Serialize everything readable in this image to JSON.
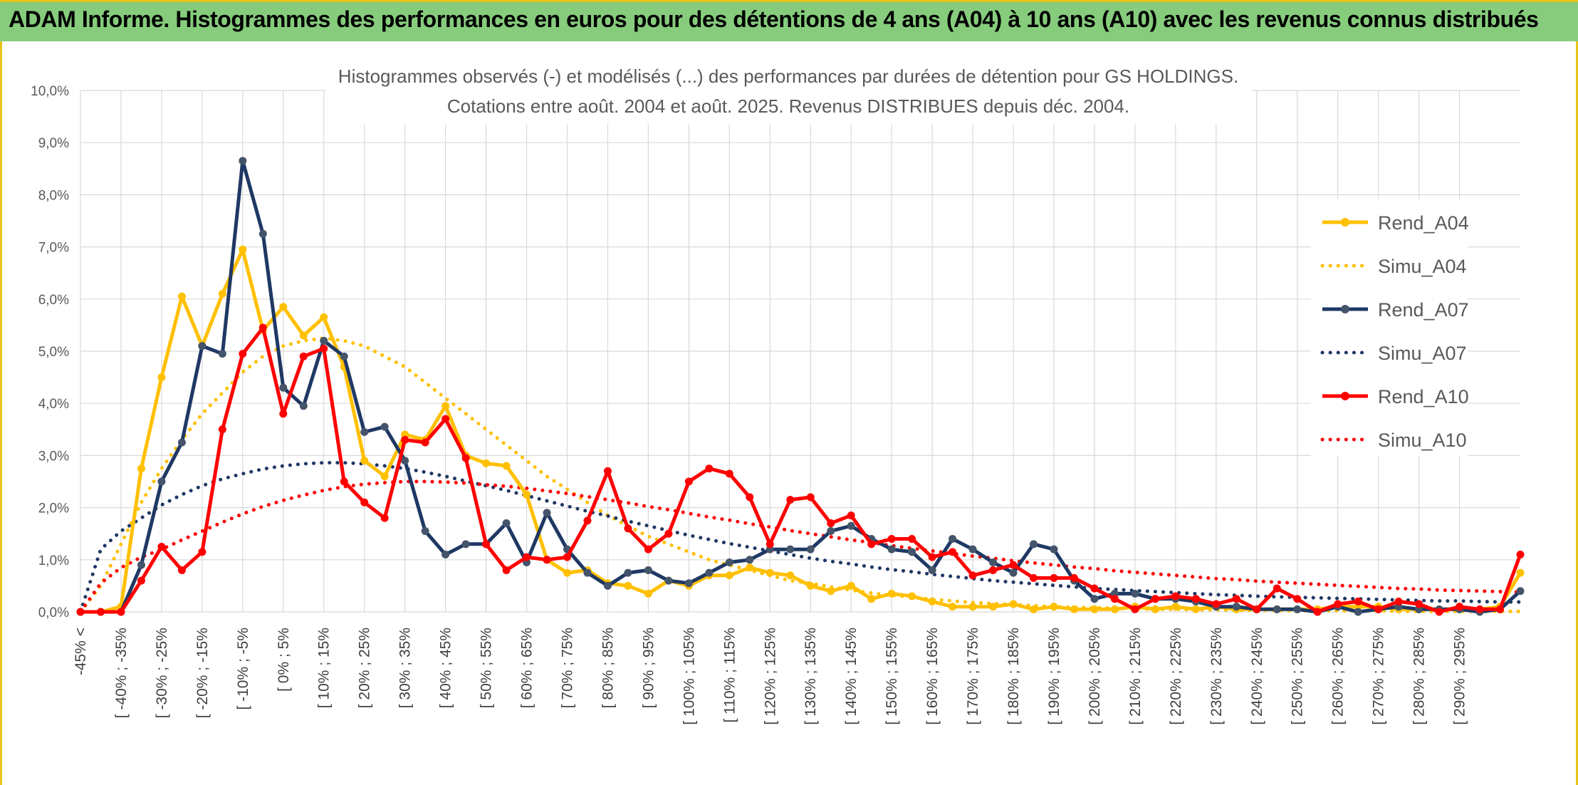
{
  "banner": {
    "title": "ADAM Informe. Histogrammes des performances en euros pour des détentions de 4 ans (A04) à 10 ans (A10) avec les revenus connus distribués"
  },
  "colors": {
    "banner_bg": "#86cc7c",
    "banner_border": "#e8c41a",
    "a04": "#ffc000",
    "a07": "#1f3864",
    "a10": "#ff0000",
    "marker_a07": "#44546a"
  },
  "chart_data": {
    "type": "line",
    "title": "Histogrammes observés (-) et modélisés (...) des performances par durées de détention pour GS HOLDINGS.",
    "subtitle": "Cotations entre août. 2004 et août. 2025. Revenus DISTRIBUES depuis déc. 2004.",
    "xlabel": "",
    "ylabel": "",
    "ylim": [
      0,
      10
    ],
    "y_ticks": [
      "0,0%",
      "1,0%",
      "2,0%",
      "3,0%",
      "4,0%",
      "5,0%",
      "6,0%",
      "7,0%",
      "8,0%",
      "9,0%",
      "10,0%"
    ],
    "grid": true,
    "legend_position": "right",
    "x_labels": [
      "-45% <",
      "[ -40% ; -35%",
      "[ -30% ; -25%",
      "[ -20% ; -15%",
      "[ -10% ; -5%",
      "[ 0% ; 5%",
      "[ 10% ; 15%",
      "[ 20% ; 25%",
      "[ 30% ; 35%",
      "[ 40% ; 45%",
      "[ 50% ; 55%",
      "[ 60% ; 65%",
      "[ 70% ; 75%",
      "[ 80% ; 85%",
      "[ 90% ; 95%",
      "[ 100% ; 105%",
      "[ 110% ; 115%",
      "[ 120% ; 125%",
      "[ 130% ; 135%",
      "[ 140% ; 145%",
      "[ 150% ; 155%",
      "[ 160% ; 165%",
      "[ 170% ; 175%",
      "[ 180% ; 185%",
      "[ 190% ; 195%",
      "[ 200% ; 205%",
      "[ 210% ; 215%",
      "[ 220% ; 225%",
      "[ 230% ; 235%",
      "[ 240% ; 245%",
      "[ 250% ; 255%",
      "[ 260% ; 265%",
      "[ 270% ; 275%",
      "[ 280% ; 285%",
      "[ 290% ; 295%"
    ],
    "series": [
      {
        "name": "Rend_A04",
        "style": "solid",
        "color": "#ffc000",
        "values": [
          0,
          0,
          0.1,
          2.75,
          4.5,
          6.05,
          5.1,
          6.1,
          6.95,
          5.4,
          5.85,
          5.3,
          5.65,
          4.7,
          2.9,
          2.6,
          3.4,
          3.3,
          3.95,
          3.0,
          2.85,
          2.8,
          2.25,
          1.0,
          0.75,
          0.8,
          0.55,
          0.5,
          0.35,
          0.6,
          0.5,
          0.7,
          0.7,
          0.85,
          0.75,
          0.7,
          0.5,
          0.4,
          0.5,
          0.25,
          0.35,
          0.3,
          0.2,
          0.1,
          0.1,
          0.1,
          0.15,
          0.05,
          0.1,
          0.05,
          0.05,
          0.05,
          0.1,
          0.05,
          0.1,
          0.05,
          0.1,
          0.05,
          0.05,
          0.05,
          0.05,
          0.05,
          0.1,
          0.1,
          0.1,
          0.05,
          0.05,
          0.05,
          0.05,
          0.05,
          0.1,
          0.75
        ]
      },
      {
        "name": "Simu_A04",
        "style": "dotted",
        "color": "#ffc000",
        "values": [
          0,
          0.5,
          1.3,
          2.1,
          2.75,
          3.3,
          3.8,
          4.2,
          4.6,
          4.9,
          5.1,
          5.2,
          5.25,
          5.2,
          5.1,
          4.9,
          4.7,
          4.4,
          4.1,
          3.8,
          3.5,
          3.2,
          2.9,
          2.6,
          2.35,
          2.1,
          1.85,
          1.65,
          1.45,
          1.3,
          1.15,
          1.0,
          0.9,
          0.8,
          0.7,
          0.6,
          0.55,
          0.48,
          0.42,
          0.36,
          0.32,
          0.28,
          0.24,
          0.21,
          0.18,
          0.16,
          0.14,
          0.12,
          0.1,
          0.09,
          0.08,
          0.07,
          0.06,
          0.05,
          0.05,
          0.04,
          0.04,
          0.03,
          0.03,
          0.03,
          0.02,
          0.02,
          0.02,
          0.02,
          0.02,
          0.01,
          0.01,
          0.01,
          0.01,
          0.01,
          0.01,
          0.01
        ]
      },
      {
        "name": "Rend_A07",
        "style": "solid",
        "color": "#1f3864",
        "values": [
          0,
          0,
          0,
          0.9,
          2.5,
          3.25,
          5.1,
          4.95,
          8.65,
          7.25,
          4.3,
          3.95,
          5.2,
          4.9,
          3.45,
          3.55,
          2.9,
          1.55,
          1.1,
          1.3,
          1.3,
          1.7,
          0.95,
          1.9,
          1.2,
          0.75,
          0.5,
          0.75,
          0.8,
          0.6,
          0.55,
          0.75,
          0.95,
          1.0,
          1.2,
          1.2,
          1.2,
          1.55,
          1.65,
          1.4,
          1.2,
          1.15,
          0.8,
          1.4,
          1.2,
          0.95,
          0.75,
          1.3,
          1.2,
          0.6,
          0.25,
          0.35,
          0.35,
          0.25,
          0.25,
          0.2,
          0.1,
          0.1,
          0.05,
          0.05,
          0.05,
          0.0,
          0.1,
          0.0,
          0.05,
          0.1,
          0.05,
          0.05,
          0.05,
          0.0,
          0.05,
          0.4
        ]
      },
      {
        "name": "Simu_A07",
        "style": "dotted",
        "color": "#1f3864",
        "values": [
          0,
          1.2,
          1.55,
          1.8,
          2.05,
          2.25,
          2.42,
          2.55,
          2.65,
          2.74,
          2.8,
          2.84,
          2.86,
          2.86,
          2.84,
          2.8,
          2.75,
          2.68,
          2.6,
          2.51,
          2.42,
          2.33,
          2.23,
          2.13,
          2.03,
          1.93,
          1.84,
          1.74,
          1.65,
          1.56,
          1.47,
          1.39,
          1.31,
          1.24,
          1.17,
          1.1,
          1.03,
          0.97,
          0.92,
          0.86,
          0.81,
          0.77,
          0.72,
          0.68,
          0.64,
          0.6,
          0.57,
          0.54,
          0.51,
          0.48,
          0.45,
          0.43,
          0.41,
          0.39,
          0.37,
          0.35,
          0.33,
          0.32,
          0.3,
          0.29,
          0.28,
          0.27,
          0.26,
          0.25,
          0.24,
          0.23,
          0.22,
          0.21,
          0.21,
          0.2,
          0.19,
          0.19
        ]
      },
      {
        "name": "Rend_A10",
        "style": "solid",
        "color": "#ff0000",
        "values": [
          0,
          0,
          0,
          0.6,
          1.25,
          0.8,
          1.15,
          3.5,
          4.95,
          5.45,
          3.8,
          4.9,
          5.05,
          2.5,
          2.1,
          1.8,
          3.3,
          3.25,
          3.7,
          2.95,
          1.3,
          0.8,
          1.05,
          1.0,
          1.05,
          1.75,
          2.7,
          1.6,
          1.2,
          1.5,
          2.5,
          2.75,
          2.65,
          2.2,
          1.3,
          2.15,
          2.2,
          1.7,
          1.85,
          1.3,
          1.4,
          1.4,
          1.05,
          1.15,
          0.7,
          0.8,
          0.9,
          0.65,
          0.65,
          0.65,
          0.45,
          0.25,
          0.05,
          0.25,
          0.3,
          0.25,
          0.15,
          0.25,
          0.05,
          0.45,
          0.25,
          0.0,
          0.15,
          0.2,
          0.05,
          0.2,
          0.15,
          0.0,
          0.1,
          0.05,
          0.05,
          1.1
        ]
      },
      {
        "name": "Simu_A10",
        "style": "dotted",
        "color": "#ff0000",
        "values": [
          0,
          0.55,
          0.85,
          1.05,
          1.2,
          1.38,
          1.55,
          1.72,
          1.88,
          2.02,
          2.14,
          2.24,
          2.33,
          2.4,
          2.45,
          2.48,
          2.5,
          2.5,
          2.49,
          2.47,
          2.44,
          2.41,
          2.37,
          2.32,
          2.27,
          2.21,
          2.15,
          2.09,
          2.02,
          1.96,
          1.89,
          1.82,
          1.76,
          1.69,
          1.63,
          1.56,
          1.5,
          1.44,
          1.38,
          1.33,
          1.27,
          1.22,
          1.17,
          1.12,
          1.07,
          1.03,
          0.98,
          0.94,
          0.9,
          0.86,
          0.83,
          0.79,
          0.76,
          0.73,
          0.7,
          0.67,
          0.64,
          0.62,
          0.59,
          0.57,
          0.55,
          0.53,
          0.51,
          0.49,
          0.47,
          0.45,
          0.44,
          0.42,
          0.41,
          0.4,
          0.39,
          0.38
        ]
      }
    ]
  }
}
